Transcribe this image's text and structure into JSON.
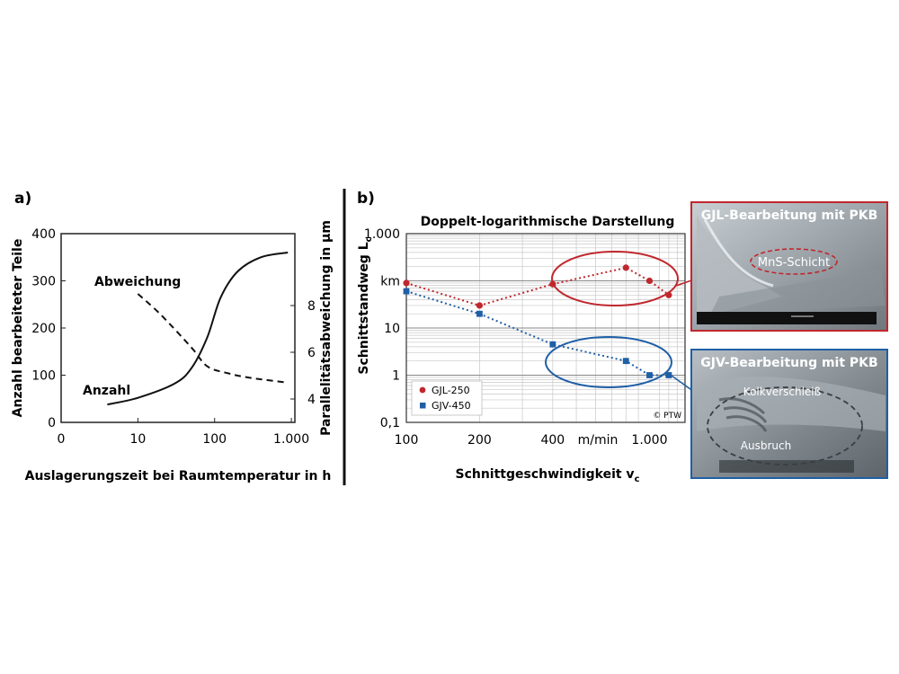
{
  "panel_a": {
    "label": "a)",
    "xlabel": "Auslagerungszeit bei Raumtemperatur in h",
    "ylabel_left": "Anzahl bearbeiteter Teile",
    "ylabel_right": "Parallelitätsabweichung in µm",
    "x_ticks": [
      "0",
      "10",
      "100",
      "1.000"
    ],
    "y_left_ticks": [
      "0",
      "100",
      "200",
      "300",
      "400"
    ],
    "y_right_ticks": [
      "4",
      "6",
      "8"
    ],
    "curve_labels": {
      "abweichung": "Abweichung",
      "anzahl": "Anzahl"
    }
  },
  "panel_b": {
    "label": "b)",
    "title": "Doppelt-logarithmische Darstellung",
    "xlabel": "Schnittgeschwindigkeit v",
    "xlabel_sub": "c",
    "ylabel": "Schnittstandweg L",
    "ylabel_sub": "c",
    "x_ticks": [
      "100",
      "200",
      "400",
      "1.000"
    ],
    "x_unit": "m/min",
    "y_ticks": [
      "0,1",
      "1",
      "10",
      "km",
      "1.000"
    ],
    "copyright": "© PTW",
    "colors": {
      "gjl": "#c0272d",
      "gjv": "#1f5fa6"
    }
  },
  "photos": {
    "gjl": {
      "title": "GJL-Bearbeitung mit PKB",
      "label": "MnS-Schicht",
      "border": "#c0272d"
    },
    "gjv": {
      "title": "GJV-Bearbeitung mit PKB",
      "label_top": "Kolkverschleiß",
      "label_bottom": "Ausbruch",
      "border": "#1f5fa6"
    }
  },
  "chart_data": [
    {
      "type": "line",
      "x_scale": "log",
      "xlabel": "Auslagerungszeit bei Raumtemperatur in h",
      "ylabel": "Anzahl bearbeiteter Teile",
      "ylim": [
        0,
        400
      ],
      "y2label": "Parallelitätsabweichung in µm",
      "y2ticks": [
        4,
        6,
        8
      ],
      "grid": false,
      "series": [
        {
          "name": "Anzahl",
          "axis": "left",
          "style": "solid",
          "x": [
            4,
            10,
            30,
            50,
            80,
            120,
            200,
            400,
            900
          ],
          "y": [
            38,
            52,
            82,
            115,
            180,
            265,
            320,
            350,
            360
          ]
        },
        {
          "name": "Abweichung",
          "axis": "right",
          "style": "dashed",
          "x": [
            10,
            20,
            50,
            80,
            150,
            300,
            900
          ],
          "y": [
            8.5,
            7.6,
            6.2,
            5.4,
            5.1,
            4.9,
            4.7
          ]
        }
      ]
    },
    {
      "type": "line",
      "title": "Doppelt-logarithmische Darstellung",
      "x_scale": "log",
      "y_scale": "log",
      "xlabel": "Schnittgeschwindigkeit vc",
      "ylabel": "Schnittstandweg Lc",
      "xlim": [
        100,
        1400
      ],
      "ylim": [
        0.1,
        1000
      ],
      "legend": "bottom-left",
      "grid": true,
      "series": [
        {
          "name": "GJL-250",
          "marker": "circle",
          "color": "#c0272d",
          "x": [
            100,
            200,
            400,
            800,
            1000,
            1200
          ],
          "y": [
            90,
            30,
            85,
            190,
            100,
            50
          ]
        },
        {
          "name": "GJV-450",
          "marker": "square",
          "color": "#1f5fa6",
          "x": [
            100,
            200,
            400,
            800,
            1000,
            1200
          ],
          "y": [
            60,
            20,
            4.5,
            2,
            1,
            1
          ]
        }
      ]
    }
  ]
}
